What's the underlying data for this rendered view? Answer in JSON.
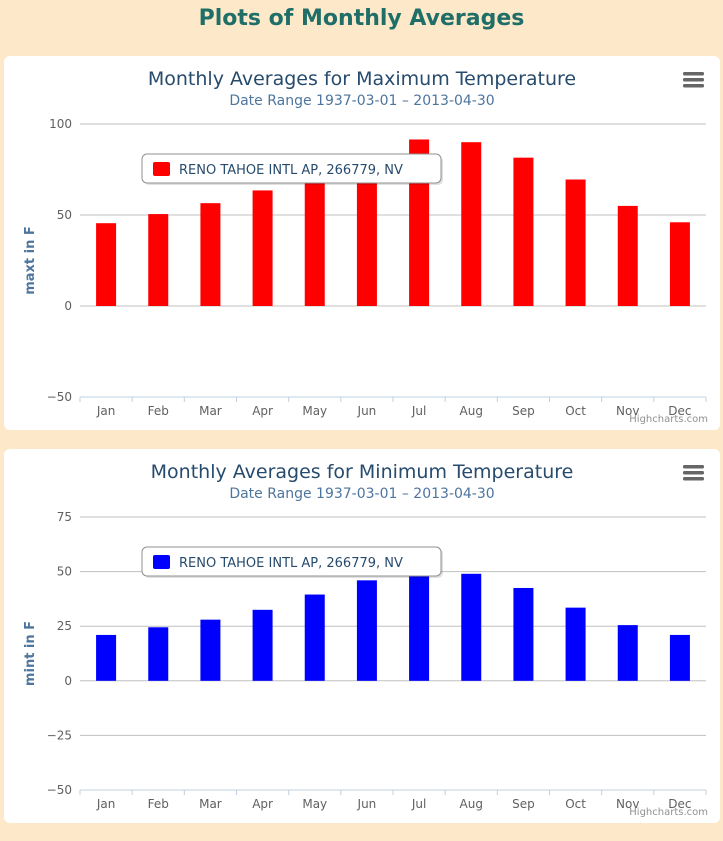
{
  "page": {
    "title": "Plots of Monthly Averages",
    "menu_icon": "hamburger-menu-icon",
    "credits": "Highcharts.com"
  },
  "chart_data": [
    {
      "type": "bar",
      "title": "Monthly Averages for Maximum Temperature",
      "subtitle": "Date Range 1937-03-01 – 2013-04-30",
      "xlabel": "",
      "ylabel": "maxt in F",
      "ylim": [
        -50,
        100
      ],
      "yticks": [
        -50,
        0,
        50,
        100
      ],
      "grid": true,
      "legend_position": "top-left",
      "categories": [
        "Jan",
        "Feb",
        "Mar",
        "Apr",
        "May",
        "Jun",
        "Jul",
        "Aug",
        "Sep",
        "Oct",
        "Nov",
        "Dec"
      ],
      "series": [
        {
          "name": "RENO TAHOE INTL AP, 266779, NV",
          "color": "#ff0000",
          "values": [
            45.5,
            50.5,
            56.5,
            63.5,
            72,
            82.5,
            91.5,
            90,
            81.5,
            69.5,
            55,
            46
          ]
        }
      ]
    },
    {
      "type": "bar",
      "title": "Monthly Averages for Minimum Temperature",
      "subtitle": "Date Range 1937-03-01 – 2013-04-30",
      "xlabel": "",
      "ylabel": "mint in F",
      "ylim": [
        -50,
        75
      ],
      "yticks": [
        -50,
        -25,
        0,
        25,
        50,
        75
      ],
      "grid": true,
      "legend_position": "top-left",
      "categories": [
        "Jan",
        "Feb",
        "Mar",
        "Apr",
        "May",
        "Jun",
        "Jul",
        "Aug",
        "Sep",
        "Oct",
        "Nov",
        "Dec"
      ],
      "series": [
        {
          "name": "RENO TAHOE INTL AP, 266779, NV",
          "color": "#0000ff",
          "values": [
            21,
            24.5,
            28,
            32.5,
            39.5,
            46,
            52,
            49,
            42.5,
            33.5,
            25.5,
            21
          ]
        }
      ]
    }
  ]
}
